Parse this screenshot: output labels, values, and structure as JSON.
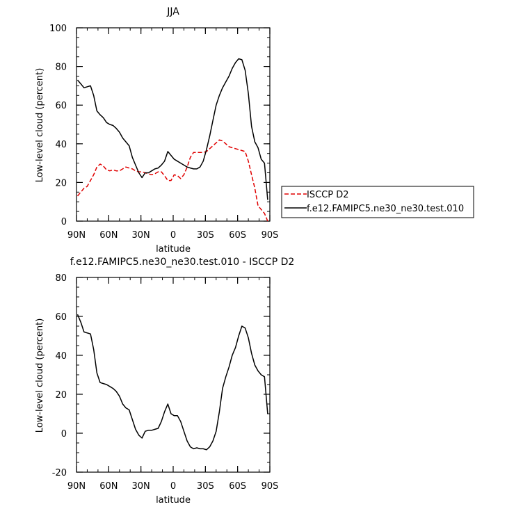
{
  "chart_data": [
    {
      "type": "line",
      "title": "JJA",
      "xlabel": "latitude",
      "ylabel": "Low-level cloud (percent)",
      "xlim": [
        90,
        -90
      ],
      "ylim": [
        0,
        100
      ],
      "x_ticks": [
        90,
        60,
        30,
        0,
        -30,
        -60,
        -90
      ],
      "x_tick_labels": [
        "90N",
        "60N",
        "30N",
        "0",
        "30S",
        "60S",
        "90S"
      ],
      "y_ticks": [
        0,
        20,
        40,
        60,
        80,
        100
      ],
      "y_tick_labels": [
        "0",
        "20",
        "40",
        "60",
        "80",
        "100"
      ],
      "legend_position": "outside-right-bottom",
      "series": [
        {
          "name": "ISCCP D2",
          "color": "#e00000",
          "dash": "dashed",
          "x": [
            89,
            86,
            83,
            80,
            77,
            74,
            71,
            68,
            65,
            62,
            59,
            56,
            53,
            50,
            47,
            44,
            41,
            38,
            35,
            32,
            29,
            26,
            23,
            20,
            17,
            14,
            11,
            8,
            5,
            2,
            -1,
            -4,
            -7,
            -10,
            -13,
            -16,
            -19,
            -22,
            -25,
            -28,
            -31,
            -34,
            -37,
            -40,
            -43,
            -46,
            -49,
            -52,
            -55,
            -58,
            -61,
            -64,
            -67,
            -70,
            -73,
            -76,
            -79,
            -82,
            -85,
            -88
          ],
          "y": [
            13,
            15,
            17,
            18,
            21,
            24,
            28,
            29.5,
            28.5,
            26.5,
            26,
            26.5,
            26,
            26,
            27,
            28,
            27.5,
            27,
            26,
            25.5,
            25.5,
            25,
            24.5,
            24,
            24.5,
            25.5,
            25.5,
            23.5,
            21,
            21,
            24,
            23.5,
            22,
            24,
            28,
            33,
            35.5,
            35.5,
            35.5,
            35.5,
            36,
            37.5,
            39,
            40.5,
            42,
            41.5,
            40,
            38.5,
            38,
            37.5,
            37,
            36.5,
            36,
            31,
            24,
            17,
            8,
            6,
            4,
            0
          ]
        },
        {
          "name": "f.e12.FAMIPC5.ne30_ne30.test.010",
          "color": "#000000",
          "dash": "solid",
          "x": [
            89,
            86,
            83,
            80,
            77,
            74,
            71,
            68,
            65,
            62,
            59,
            56,
            53,
            50,
            47,
            44,
            41,
            38,
            35,
            32,
            29,
            26,
            23,
            20,
            17,
            14,
            11,
            8,
            5,
            2,
            -1,
            -4,
            -7,
            -10,
            -13,
            -16,
            -19,
            -22,
            -25,
            -28,
            -31,
            -34,
            -37,
            -40,
            -43,
            -46,
            -49,
            -52,
            -55,
            -58,
            -61,
            -64,
            -67,
            -70,
            -73,
            -76,
            -79,
            -82,
            -85,
            -88
          ],
          "y": [
            73,
            71,
            69,
            69.5,
            70,
            65,
            57,
            55,
            53.5,
            51,
            50,
            49.5,
            48,
            46,
            43,
            41,
            39,
            33,
            29,
            25,
            22.5,
            25,
            25,
            26,
            27,
            27.5,
            29,
            31,
            36,
            34,
            32,
            31,
            30,
            29,
            28,
            27.5,
            27,
            27,
            28,
            31,
            37,
            44,
            52,
            60,
            65,
            69,
            72,
            75,
            79,
            82,
            84,
            83.5,
            78,
            66,
            49,
            41,
            38,
            32,
            30,
            11
          ]
        }
      ]
    },
    {
      "type": "line",
      "title": "f.e12.FAMIPC5.ne30_ne30.test.010 - ISCCP D2",
      "xlabel": "latitude",
      "ylabel": "Low-level cloud (percent)",
      "xlim": [
        90,
        -90
      ],
      "ylim": [
        -20,
        80
      ],
      "x_ticks": [
        90,
        60,
        30,
        0,
        -30,
        -60,
        -90
      ],
      "x_tick_labels": [
        "90N",
        "60N",
        "30N",
        "0",
        "30S",
        "60S",
        "90S"
      ],
      "y_ticks": [
        -20,
        0,
        20,
        40,
        60,
        80
      ],
      "y_tick_labels": [
        "-20",
        "0",
        "20",
        "40",
        "60",
        "80"
      ],
      "series": [
        {
          "color": "#000000",
          "dash": "solid",
          "x": [
            89,
            86,
            83,
            80,
            77,
            74,
            71,
            68,
            65,
            62,
            59,
            56,
            53,
            50,
            47,
            44,
            41,
            38,
            35,
            32,
            29,
            26,
            23,
            20,
            17,
            14,
            11,
            8,
            5,
            2,
            -1,
            -4,
            -7,
            -10,
            -13,
            -16,
            -19,
            -22,
            -25,
            -28,
            -31,
            -34,
            -37,
            -40,
            -43,
            -46,
            -49,
            -52,
            -55,
            -58,
            -61,
            -64,
            -67,
            -70,
            -73,
            -76,
            -79,
            -82,
            -85,
            -88
          ],
          "y": [
            61,
            57,
            52,
            51.5,
            51,
            43,
            31,
            26,
            25.5,
            25,
            24,
            23,
            21.5,
            19,
            15,
            13,
            12,
            7,
            2,
            -1,
            -2.5,
            1,
            1.5,
            1.5,
            2,
            2.5,
            6,
            11,
            15,
            10,
            9,
            9,
            6,
            1,
            -4,
            -7,
            -8,
            -7.5,
            -8,
            -8,
            -8.5,
            -7,
            -4,
            1,
            11,
            23,
            29,
            34,
            40,
            44,
            50,
            55,
            54,
            49,
            41,
            35,
            32,
            30,
            29,
            10
          ]
        }
      ]
    }
  ]
}
